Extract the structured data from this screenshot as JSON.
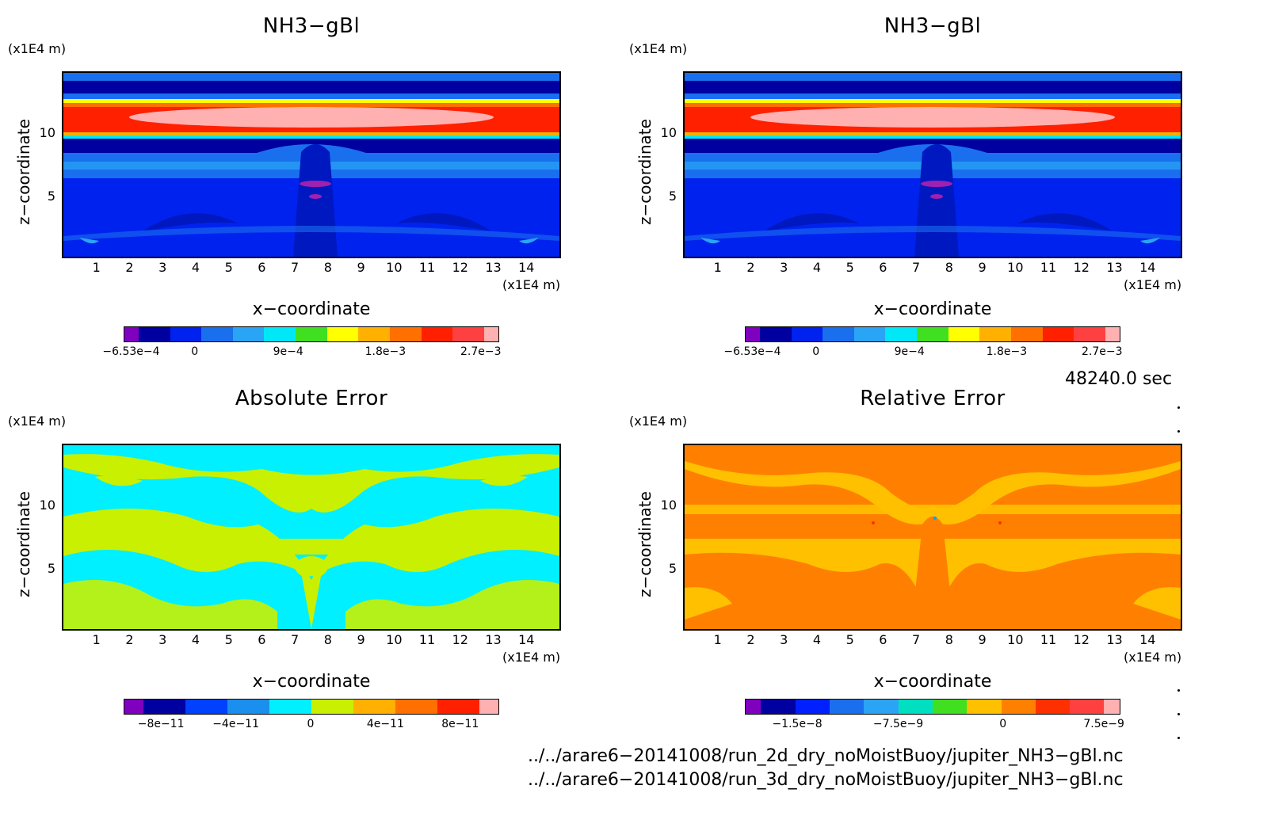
{
  "panels": [
    {
      "title": "NH3−gBl",
      "xlabel": "x−coordinate",
      "ylabel": "z−coordinate",
      "unit": "(x1E4 m)",
      "colorbar": {
        "colors": [
          "#8000c0",
          "#0000a0",
          "#0022ee",
          "#1a6fee",
          "#2aa5f5",
          "#00e8f8",
          "#40e020",
          "#ffff00",
          "#ffb000",
          "#ff7000",
          "#ff2000",
          "#ff4040",
          "#ffb0b0"
        ],
        "ticks": [
          "−6.53e−4",
          "0",
          "9e−4",
          "1.8e−3",
          "2.7e−3"
        ]
      }
    },
    {
      "title": "NH3−gBl",
      "xlabel": "x−coordinate",
      "ylabel": "z−coordinate",
      "unit": "(x1E4 m)",
      "colorbar": {
        "colors": [
          "#8000c0",
          "#0000a0",
          "#0022ee",
          "#1a6fee",
          "#2aa5f5",
          "#00e8f8",
          "#40e020",
          "#ffff00",
          "#ffb000",
          "#ff7000",
          "#ff2000",
          "#ff4040",
          "#ffb0b0"
        ],
        "ticks": [
          "−6.53e−4",
          "0",
          "9e−4",
          "1.8e−3",
          "2.7e−3"
        ]
      }
    },
    {
      "title": "Absolute Error",
      "xlabel": "x−coordinate",
      "ylabel": "z−coordinate",
      "unit": "(x1E4 m)",
      "colorbar": {
        "colors": [
          "#8000c0",
          "#0000a0",
          "#0040ff",
          "#1a8fee",
          "#00f0ff",
          "#c8f000",
          "#ffb000",
          "#ff7000",
          "#ff2000",
          "#ffb0b0"
        ],
        "ticks": [
          "−8e−11",
          "−4e−11",
          "0",
          "4e−11",
          "8e−11"
        ]
      }
    },
    {
      "title": "Relative Error",
      "xlabel": "x−coordinate",
      "ylabel": "z−coordinate",
      "unit": "(x1E4 m)",
      "colorbar": {
        "colors": [
          "#8000c0",
          "#0000a0",
          "#0020ff",
          "#1a6fee",
          "#2aa5f5",
          "#00e0c0",
          "#40e020",
          "#ffc000",
          "#ff8000",
          "#ff3000",
          "#ff4040",
          "#ffb0b0"
        ],
        "ticks": [
          "−1.5e−8",
          "−7.5e−9",
          "0",
          "7.5e−9"
        ]
      }
    }
  ],
  "axes": {
    "x_ticks": [
      "1",
      "2",
      "3",
      "4",
      "5",
      "6",
      "7",
      "8",
      "9",
      "10",
      "11",
      "12",
      "13",
      "14"
    ],
    "y_ticks": [
      "5",
      "10"
    ]
  },
  "time_label": "48240.0 sec",
  "files": [
    "../../arare6−20141008/run_2d_dry_noMoistBuoy/jupiter_NH3−gBl.nc",
    "../../arare6−20141008/run_3d_dry_noMoistBuoy/jupiter_NH3−gBl.nc"
  ],
  "chart_data": [
    {
      "type": "heatmap",
      "title": "NH3−gBl",
      "xlabel": "x−coordinate",
      "ylabel": "z−coordinate",
      "xlim": [
        0,
        15
      ],
      "ylim": [
        0,
        15
      ],
      "x_unit": "(x1E4 m)",
      "y_unit": "(x1E4 m)",
      "colorbar_ticks": [
        -0.000653,
        0,
        0.0009,
        0.0018,
        0.0027
      ],
      "bands": [
        {
          "z_range": [
            0,
            7
          ],
          "value_level": "0"
        },
        {
          "z_range": [
            7,
            9.5
          ],
          "value_level": "3e-4"
        },
        {
          "z_range": [
            9.5,
            13
          ],
          "value_level": "2.5e-3"
        },
        {
          "z_range": [
            10.8,
            12.2
          ],
          "value_level": "2.7e-3"
        },
        {
          "z_range": [
            13,
            15
          ],
          "value_level": "0"
        }
      ]
    },
    {
      "type": "heatmap",
      "title": "NH3−gBl",
      "xlabel": "x−coordinate",
      "ylabel": "z−coordinate",
      "xlim": [
        0,
        15
      ],
      "ylim": [
        0,
        15
      ],
      "x_unit": "(x1E4 m)",
      "y_unit": "(x1E4 m)",
      "colorbar_ticks": [
        -0.000653,
        0,
        0.0009,
        0.0018,
        0.0027
      ]
    },
    {
      "type": "heatmap",
      "title": "Absolute Error",
      "xlabel": "x−coordinate",
      "ylabel": "z−coordinate",
      "xlim": [
        0,
        15
      ],
      "ylim": [
        0,
        15
      ],
      "x_unit": "(x1E4 m)",
      "y_unit": "(x1E4 m)",
      "colorbar_ticks": [
        -8e-11,
        -4e-11,
        0,
        4e-11,
        8e-11
      ]
    },
    {
      "type": "heatmap",
      "title": "Relative Error",
      "xlabel": "x−coordinate",
      "ylabel": "z−coordinate",
      "xlim": [
        0,
        15
      ],
      "ylim": [
        0,
        15
      ],
      "x_unit": "(x1E4 m)",
      "y_unit": "(x1E4 m)",
      "colorbar_ticks": [
        -1.5e-08,
        -7.5e-09,
        0,
        7.5e-09
      ]
    }
  ]
}
